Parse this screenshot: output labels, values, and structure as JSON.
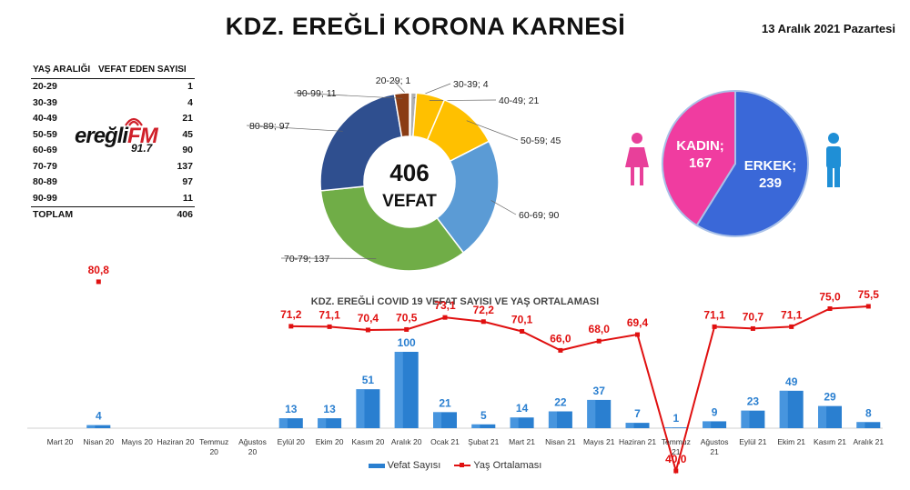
{
  "header": {
    "title": "KDZ. EREĞLİ KORONA KARNESİ",
    "date": "13 Aralık 2021 Pazartesi"
  },
  "age_table": {
    "col_age": "YAŞ ARALIĞI",
    "col_deaths": "VEFAT EDEN SAYISI",
    "rows": [
      {
        "range": "20-29",
        "count": "1"
      },
      {
        "range": "30-39",
        "count": "4"
      },
      {
        "range": "40-49",
        "count": "21"
      },
      {
        "range": "50-59",
        "count": "45"
      },
      {
        "range": "60-69",
        "count": "90"
      },
      {
        "range": "70-79",
        "count": "137"
      },
      {
        "range": "80-89",
        "count": "97"
      },
      {
        "range": "90-99",
        "count": "11"
      }
    ],
    "total_label": "TOPLAM",
    "total_value": "406"
  },
  "logo": {
    "name": "ereğli",
    "fm": "FM",
    "frequency": "91.7"
  },
  "chart_data": [
    {
      "type": "pie",
      "subtype": "donut",
      "center_value": "406",
      "center_label": "VEFAT",
      "slices": [
        {
          "label": "20-29",
          "value": 1,
          "color": "#c0561a"
        },
        {
          "label": "30-39",
          "value": 4,
          "color": "#b0b0b0"
        },
        {
          "label": "40-49",
          "value": 21,
          "color": "#ffc000"
        },
        {
          "label": "50-59",
          "value": 45,
          "color": "#ffc000"
        },
        {
          "label": "60-69",
          "value": 90,
          "color": "#5b9bd5"
        },
        {
          "label": "70-79",
          "value": 137,
          "color": "#70ad47"
        },
        {
          "label": "80-89",
          "value": 97,
          "color": "#2f4f8f"
        },
        {
          "label": "90-99",
          "value": 11,
          "color": "#8a3c14"
        }
      ]
    },
    {
      "type": "pie",
      "slices": [
        {
          "label": "KADIN",
          "value": 167,
          "color": "#f03ca0"
        },
        {
          "label": "ERKEK",
          "value": 239,
          "color": "#3a68d8"
        }
      ]
    },
    {
      "type": "bar",
      "title": "KDZ. EREĞLİ COVID 19 VEFAT SAYISI VE YAŞ ORTALAMASI",
      "categories": [
        "Mart 20",
        "Nisan 20",
        "Mayıs 20",
        "Haziran 20",
        "Temmuz 20",
        "Ağustos 20",
        "Eylül 20",
        "Ekim 20",
        "Kasım 20",
        "Aralık 20",
        "Ocak 21",
        "Şubat 21",
        "Mart 21",
        "Nisan 21",
        "Mayıs 21",
        "Haziran 21",
        "Temmuz 21",
        "Ağustos 21",
        "Eylül 21",
        "Ekim 21",
        "Kasım 21",
        "Aralık 21"
      ],
      "series": [
        {
          "name": "Vefat Sayısı",
          "type": "bar",
          "color": "#2a7fd0",
          "values": [
            null,
            4,
            null,
            null,
            null,
            null,
            13,
            13,
            51,
            100,
            21,
            5,
            14,
            22,
            37,
            7,
            1,
            9,
            23,
            49,
            29,
            8
          ],
          "labels": [
            "",
            "4",
            "",
            "",
            "",
            "",
            "13",
            "13",
            "51",
            "100",
            "21",
            "5",
            "14",
            "22",
            "37",
            "7",
            "1",
            "9",
            "23",
            "49",
            "29",
            "8"
          ]
        },
        {
          "name": "Yaş Ortalaması",
          "type": "line",
          "color": "#e01010",
          "values": [
            null,
            80.8,
            null,
            null,
            null,
            null,
            71.2,
            71.1,
            70.4,
            70.5,
            73.1,
            72.2,
            70.1,
            66.0,
            68.0,
            69.4,
            40.0,
            71.1,
            70.7,
            71.1,
            75.0,
            75.5
          ],
          "labels": [
            "",
            "80,8",
            "",
            "",
            "",
            "",
            "71,2",
            "71,1",
            "70,4",
            "70,5",
            "73,1",
            "72,2",
            "70,1",
            "66,0",
            "68,0",
            "69,4",
            "40,0",
            "71,1",
            "70,7",
            "71,1",
            "75,0",
            "75,5"
          ]
        }
      ],
      "legend": "bottom"
    }
  ]
}
